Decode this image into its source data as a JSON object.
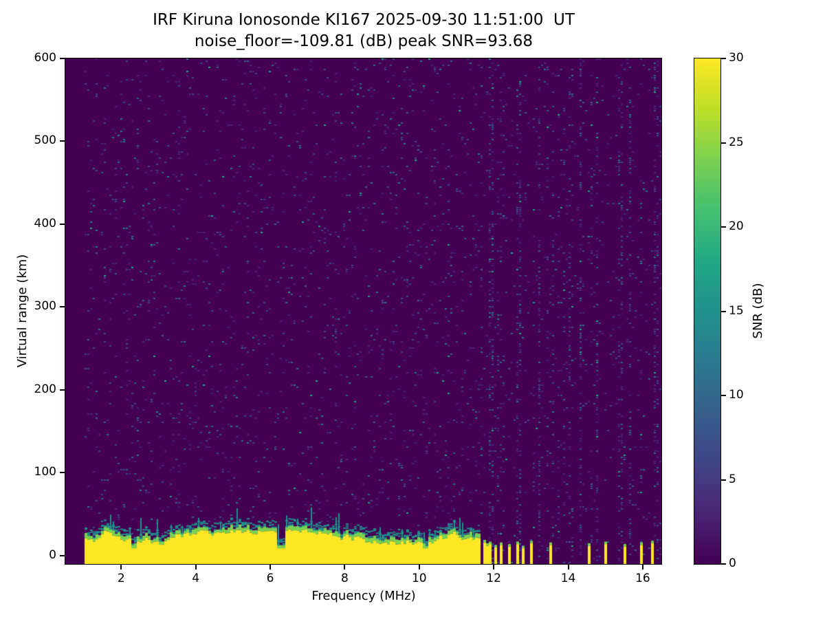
{
  "chart_data": {
    "type": "heatmap",
    "title": "IRF Kiruna Ionosonde KI167 2025-09-30 11:51:00  UT",
    "subtitle": "noise_floor=-109.81 (dB) peak SNR=93.68",
    "station": "KI167",
    "timestamp_ut": "2025-09-30 11:51:00",
    "noise_floor_db": -109.81,
    "peak_snr_db": 93.68,
    "xlabel": "Frequency (MHz)",
    "ylabel": "Virtual range (km)",
    "xlim": [
      0.5,
      16.5
    ],
    "ylim": [
      -10,
      600
    ],
    "xticks": [
      2,
      4,
      6,
      8,
      10,
      12,
      14,
      16
    ],
    "yticks": [
      0,
      100,
      200,
      300,
      400,
      500,
      600
    ],
    "grid": false,
    "colorbar": {
      "label": "SNR (dB)",
      "min": 0,
      "max": 30,
      "ticks": [
        0,
        5,
        10,
        15,
        20,
        25,
        30
      ],
      "colormap": "viridis",
      "stops": [
        "#440154",
        "#482475",
        "#414487",
        "#355f8d",
        "#2a788e",
        "#21918c",
        "#22a884",
        "#44bf70",
        "#7ad151",
        "#bddf26",
        "#fde725"
      ]
    },
    "colors": {
      "background": "#440154",
      "speckles": [
        "#482878",
        "#3f4889",
        "#35608d",
        "#2a788e",
        "#22a884"
      ],
      "speckle_weights": [
        0.45,
        0.3,
        0.15,
        0.07,
        0.03
      ],
      "echo_strong": "#fde725",
      "echo_mid": "#7ad151",
      "echo_weak": "#21918c"
    },
    "freq_start_mhz": 1.0,
    "noise_speckle_density": 0.05,
    "ground_echo": {
      "freq_range_mhz": [
        1.0,
        11.62
      ],
      "height_km_min": 13,
      "height_km_max": 32,
      "notch_freqs_mhz": [
        2.35,
        6.3,
        10.15
      ],
      "description": "saturated (>=30 dB SNR) ground echo band at 0-35 km virtual range from 1 to 11.6 MHz"
    },
    "intermittent_echoes": [
      {
        "mhz": 11.7,
        "height_km": 16
      },
      {
        "mhz": 11.78,
        "height_km": 12
      },
      {
        "mhz": 11.9,
        "height_km": 14
      },
      {
        "mhz": 12.0,
        "height_km": 10
      },
      {
        "mhz": 12.18,
        "height_km": 13
      },
      {
        "mhz": 12.4,
        "height_km": 11
      },
      {
        "mhz": 12.6,
        "height_km": 14
      },
      {
        "mhz": 12.75,
        "height_km": 9
      },
      {
        "mhz": 13.0,
        "height_km": 15
      },
      {
        "mhz": 13.5,
        "height_km": 13
      },
      {
        "mhz": 14.55,
        "height_km": 12
      },
      {
        "mhz": 15.0,
        "height_km": 14
      },
      {
        "mhz": 15.5,
        "height_km": 11
      },
      {
        "mhz": 15.9,
        "height_km": 13
      },
      {
        "mhz": 16.2,
        "height_km": 15
      }
    ],
    "rfi_stripes": [
      {
        "mhz": 3.55,
        "strength": 2.6,
        "width_mhz": 0.05
      },
      {
        "mhz": 10.8,
        "strength": 2.0,
        "width_mhz": 0.05
      }
    ],
    "rfi_band": {
      "start_mhz": 11.65,
      "base_density": 0.03,
      "stripe_prob": 0.38,
      "strength_min": 3,
      "strength_max": 10,
      "description": "dense vertical RFI speckle stripes above 11.65 MHz"
    }
  }
}
